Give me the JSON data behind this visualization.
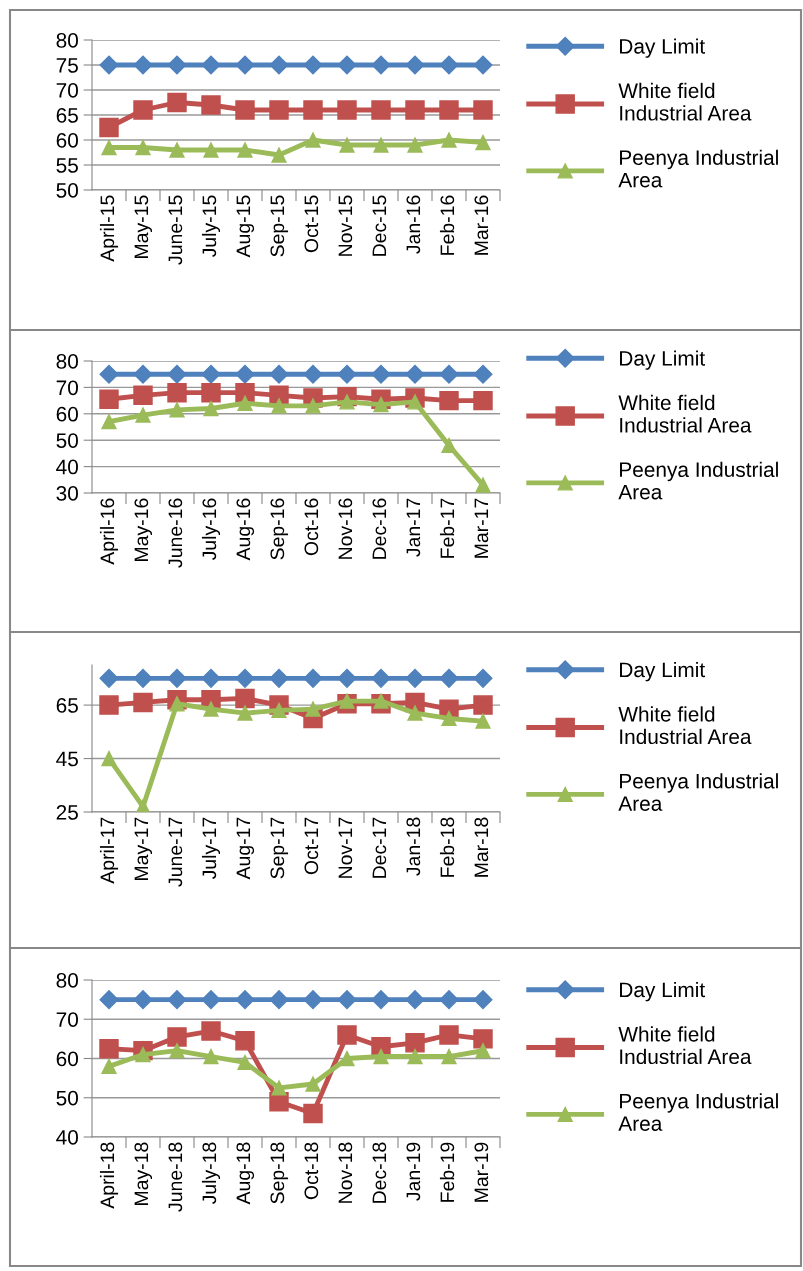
{
  "chart_data": [
    {
      "type": "line",
      "categories": [
        "April-15",
        "May-15",
        "June-15",
        "July-15",
        "Aug-15",
        "Sep-15",
        "Oct-15",
        "Nov-15",
        "Dec-15",
        "Jan-16",
        "Feb-16",
        "Mar-16"
      ],
      "ylim": [
        50,
        80
      ],
      "yticks": [
        50,
        55,
        60,
        65,
        70,
        75,
        80
      ],
      "grid": "y",
      "legend": "right",
      "series": [
        {
          "name": "Day Limit",
          "color": "#4f81bd",
          "marker": "diamond",
          "values": [
            75,
            75,
            75,
            75,
            75,
            75,
            75,
            75,
            75,
            75,
            75,
            75
          ]
        },
        {
          "name": "White field Industrial Area",
          "color": "#c0504d",
          "marker": "square",
          "values": [
            62.5,
            66,
            67.5,
            67,
            66,
            66,
            66,
            66,
            66,
            66,
            66,
            66
          ]
        },
        {
          "name": "Peenya Industrial Area",
          "color": "#9bbb59",
          "marker": "triangle",
          "values": [
            58.5,
            58.5,
            58,
            58,
            58,
            57,
            60,
            59,
            59,
            59,
            60,
            59.5
          ]
        }
      ]
    },
    {
      "type": "line",
      "categories": [
        "April-16",
        "May-16",
        "June-16",
        "July-16",
        "Aug-16",
        "Sep-16",
        "Oct-16",
        "Nov-16",
        "Dec-16",
        "Jan-17",
        "Feb-17",
        "Mar-17"
      ],
      "ylim": [
        30,
        80
      ],
      "yticks": [
        30,
        40,
        50,
        60,
        70,
        80
      ],
      "grid": "y",
      "legend": "right",
      "series": [
        {
          "name": "Day Limit",
          "color": "#4f81bd",
          "marker": "diamond",
          "values": [
            75,
            75,
            75,
            75,
            75,
            75,
            75,
            75,
            75,
            75,
            75,
            75
          ]
        },
        {
          "name": "White field Industrial Area",
          "color": "#c0504d",
          "marker": "square",
          "values": [
            65.5,
            67,
            68,
            68,
            68,
            67,
            66,
            66.5,
            65.5,
            66,
            65,
            65
          ]
        },
        {
          "name": "Peenya Industrial Area",
          "color": "#9bbb59",
          "marker": "triangle",
          "values": [
            57,
            59.5,
            61.5,
            62,
            64,
            63,
            63,
            64.5,
            63.5,
            64.5,
            48,
            33
          ]
        }
      ]
    },
    {
      "type": "line",
      "categories": [
        "April-17",
        "May-17",
        "June-17",
        "July-17",
        "Aug-17",
        "Sep-17",
        "Oct-17",
        "Nov-17",
        "Dec-17",
        "Jan-18",
        "Feb-18",
        "Mar-18"
      ],
      "ylim": [
        25,
        80
      ],
      "yticks": [
        25,
        45,
        65
      ],
      "grid": "y",
      "legend": "right",
      "series": [
        {
          "name": "Day Limit",
          "color": "#4f81bd",
          "marker": "diamond",
          "values": [
            75,
            75,
            75,
            75,
            75,
            75,
            75,
            75,
            75,
            75,
            75,
            75
          ]
        },
        {
          "name": "White field Industrial Area",
          "color": "#c0504d",
          "marker": "square",
          "values": [
            65,
            66,
            67,
            67,
            67.5,
            65,
            60,
            65.5,
            65.5,
            66,
            63.5,
            65
          ]
        },
        {
          "name": "Peenya Industrial Area",
          "color": "#9bbb59",
          "marker": "triangle",
          "values": [
            45,
            27,
            65.5,
            63.5,
            62,
            63,
            63.5,
            66.5,
            66.5,
            62,
            60,
            59
          ]
        }
      ]
    },
    {
      "type": "line",
      "categories": [
        "April-18",
        "May-18",
        "June-18",
        "July-18",
        "Aug-18",
        "Sep-18",
        "Oct-18",
        "Nov-18",
        "Dec-18",
        "Jan-19",
        "Feb-19",
        "Mar-19"
      ],
      "ylim": [
        40,
        80
      ],
      "yticks": [
        40,
        50,
        60,
        70,
        80
      ],
      "grid": "y",
      "legend": "right",
      "series": [
        {
          "name": "Day Limit",
          "color": "#4f81bd",
          "marker": "diamond",
          "values": [
            75,
            75,
            75,
            75,
            75,
            75,
            75,
            75,
            75,
            75,
            75,
            75
          ]
        },
        {
          "name": "White field Industrial Area",
          "color": "#c0504d",
          "marker": "square",
          "values": [
            62.5,
            62,
            65.5,
            67,
            64.5,
            49,
            46,
            66,
            63,
            64,
            66,
            65
          ]
        },
        {
          "name": "Peenya Industrial Area",
          "color": "#9bbb59",
          "marker": "triangle",
          "values": [
            58,
            61,
            62,
            60.5,
            59,
            52.5,
            53.5,
            60,
            60.5,
            60.5,
            60.5,
            62
          ]
        }
      ]
    }
  ]
}
